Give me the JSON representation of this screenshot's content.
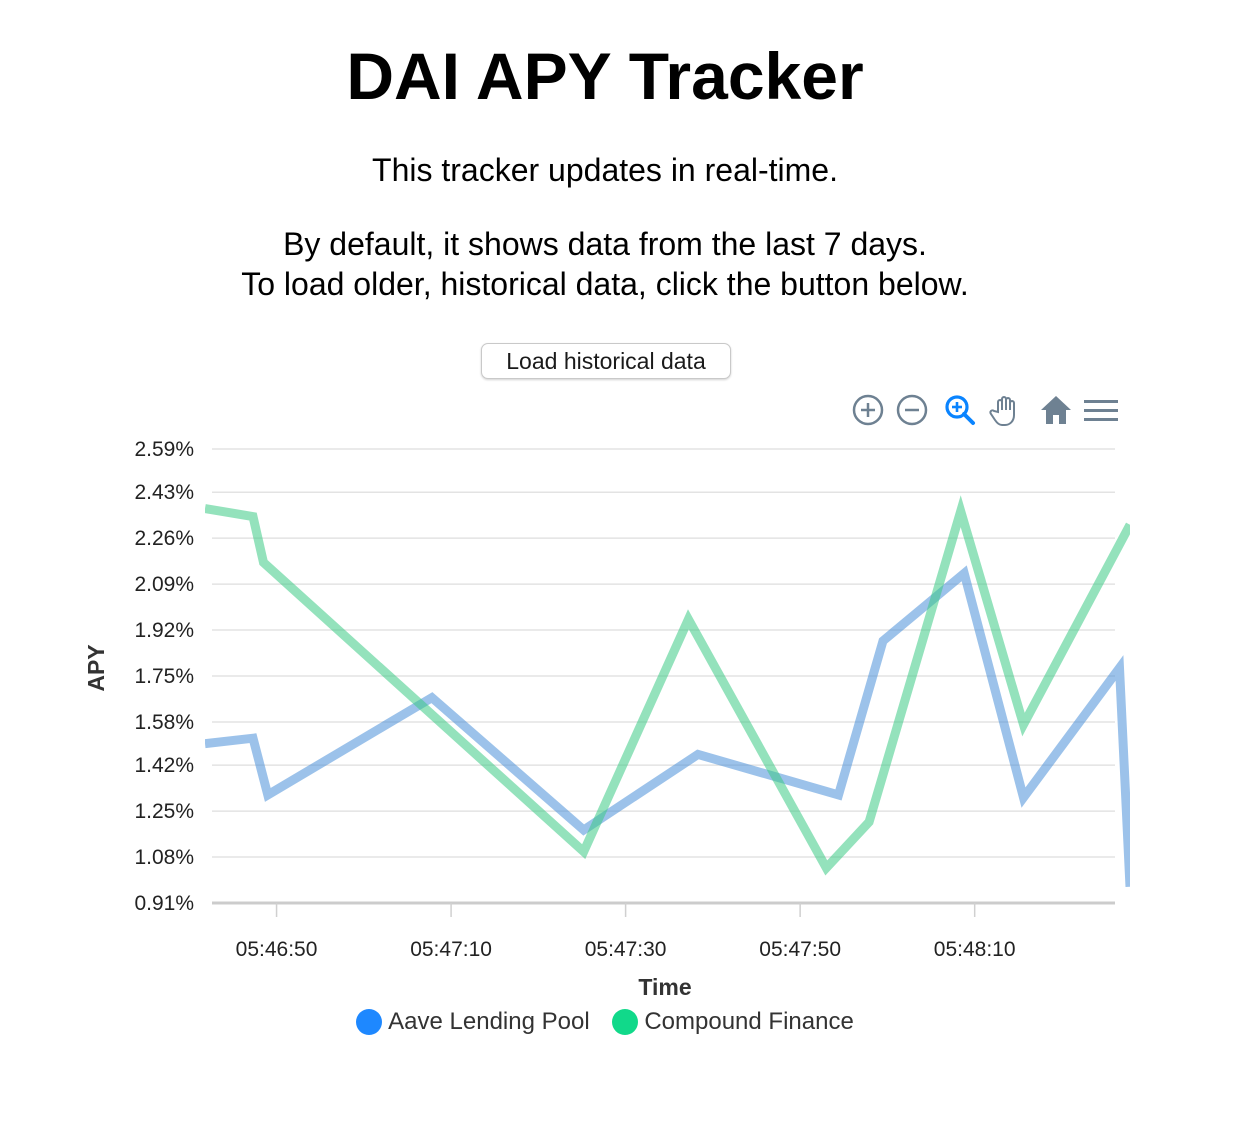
{
  "page": {
    "title": "DAI APY Tracker",
    "intro_line_1": "This tracker updates in real-time.",
    "intro_line_2": "By default, it shows data from the last 7 days.",
    "intro_line_3": "To load older, historical data, click the button below.",
    "load_button_label": "Load historical data"
  },
  "toolbar": {
    "tools": [
      {
        "name": "zoom-in-icon",
        "active": false
      },
      {
        "name": "zoom-out-icon",
        "active": false
      },
      {
        "name": "selection-zoom-icon",
        "active": true
      },
      {
        "name": "pan-hand-icon",
        "active": false
      },
      {
        "name": "reset-zoom-home-icon",
        "active": false
      },
      {
        "name": "menu-icon",
        "active": false
      }
    ]
  },
  "chart_data": {
    "type": "line",
    "xlabel": "Time",
    "ylabel": "APY",
    "y_ticks": [
      "0.91%",
      "1.08%",
      "1.25%",
      "1.42%",
      "1.58%",
      "1.75%",
      "1.92%",
      "2.09%",
      "2.26%",
      "2.43%",
      "2.59%"
    ],
    "ylim": [
      0.91,
      2.59
    ],
    "x_ticks": [
      "05:46:50",
      "05:47:10",
      "05:47:30",
      "05:47:50",
      "05:48:10"
    ],
    "x_tick_seconds": [
      50,
      70,
      90,
      110,
      130
    ],
    "xlim_seconds": [
      41.8,
      147.8
    ],
    "x_unit_note": "seconds after 05:46:00",
    "grid": true,
    "legend_position": "bottom",
    "series": [
      {
        "name": "Aave Lending Pool",
        "color": "#4a90d9",
        "points": [
          [
            41.8,
            1.5
          ],
          [
            47.3,
            1.52
          ],
          [
            49.0,
            1.31
          ],
          [
            67.8,
            1.67
          ],
          [
            85.2,
            1.18
          ],
          [
            98.3,
            1.46
          ],
          [
            114.4,
            1.31
          ],
          [
            119.5,
            1.88
          ],
          [
            128.8,
            2.13
          ],
          [
            135.6,
            1.3
          ],
          [
            146.6,
            1.78
          ],
          [
            147.8,
            0.97
          ]
        ]
      },
      {
        "name": "Compound Finance",
        "color": "#3dcb85",
        "points": [
          [
            41.8,
            2.37
          ],
          [
            47.3,
            2.34
          ],
          [
            48.5,
            2.17
          ],
          [
            85.2,
            1.1
          ],
          [
            97.2,
            1.96
          ],
          [
            113.0,
            1.04
          ],
          [
            117.9,
            1.21
          ],
          [
            128.4,
            2.36
          ],
          [
            135.6,
            1.57
          ],
          [
            147.8,
            2.31
          ]
        ]
      }
    ]
  }
}
